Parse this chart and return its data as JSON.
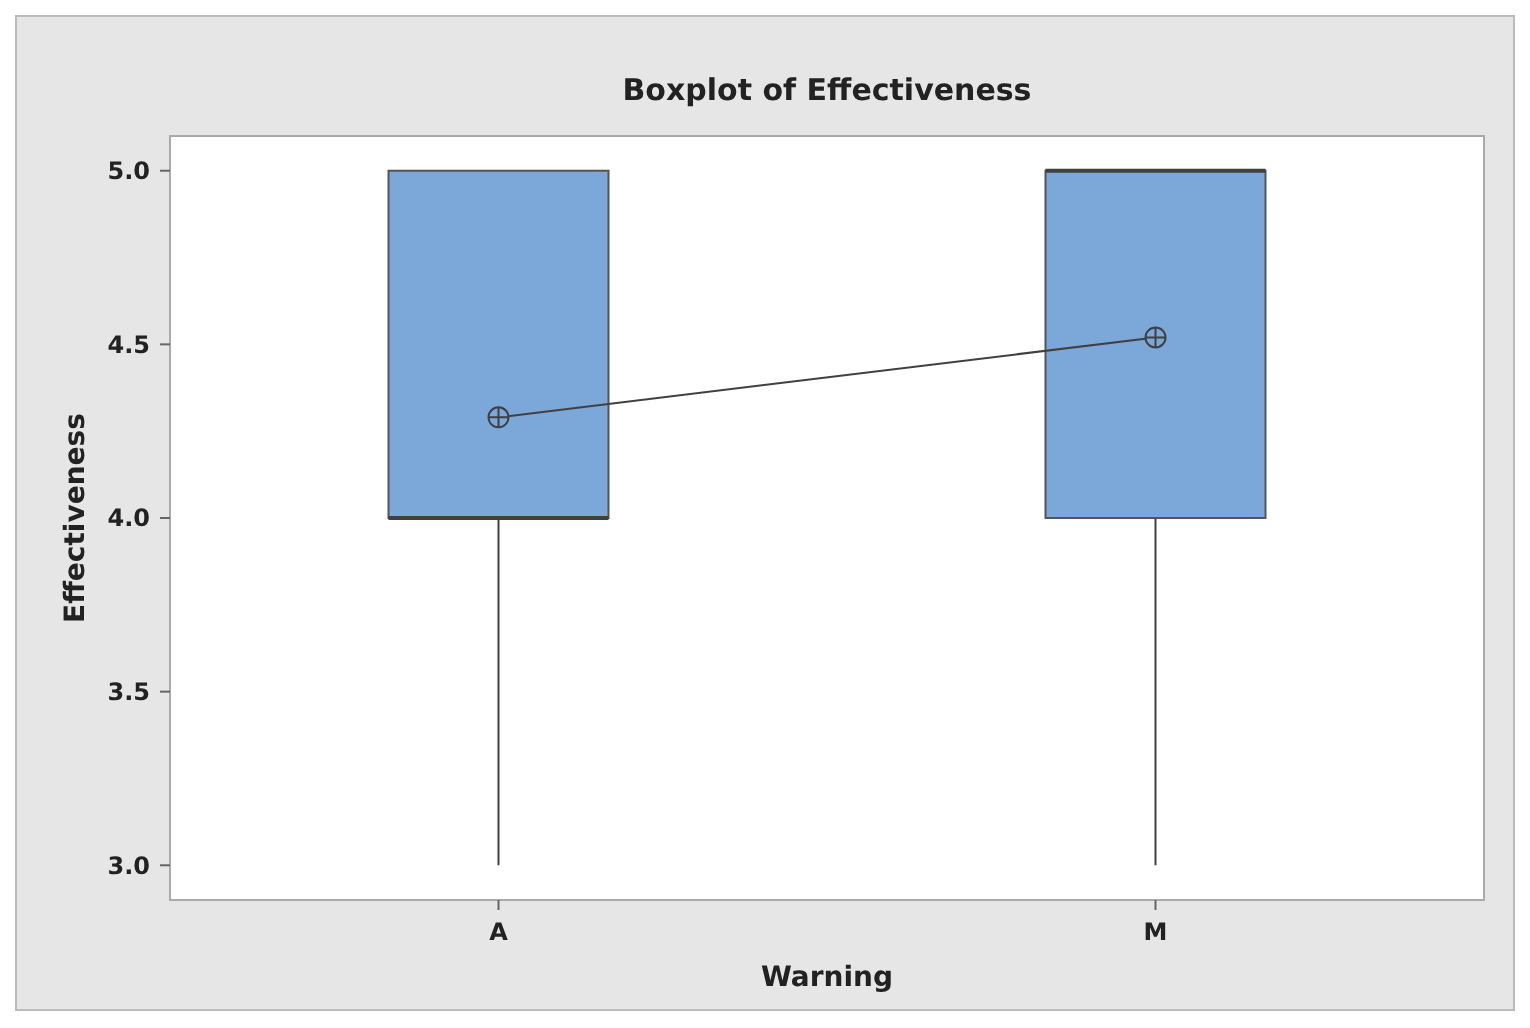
{
  "chart_data": {
    "type": "box",
    "title": "Boxplot of Effectiveness",
    "xlabel": "Warning",
    "ylabel": "Effectiveness",
    "categories": [
      "A",
      "M"
    ],
    "ylim": [
      2.9,
      5.1
    ],
    "yticks": [
      {
        "value": 3,
        "label": "3.0"
      },
      {
        "value": 3.5,
        "label": "3.5"
      },
      {
        "value": 4,
        "label": "4.0"
      },
      {
        "value": 4.5,
        "label": "4.5"
      },
      {
        "value": 5,
        "label": "5.0"
      }
    ],
    "series": [
      {
        "type": "box",
        "color": "#7ba7d9",
        "boxes": [
          {
            "low": 3,
            "q1": 4,
            "median": 4,
            "q3": 5,
            "high": 5
          },
          {
            "low": 3,
            "q1": 4,
            "median": 5,
            "q3": 5,
            "high": 5
          }
        ]
      },
      {
        "type": "line",
        "color": "#404040",
        "marker": "circle",
        "values": [
          4.29,
          4.52
        ]
      }
    ],
    "grid": false
  }
}
